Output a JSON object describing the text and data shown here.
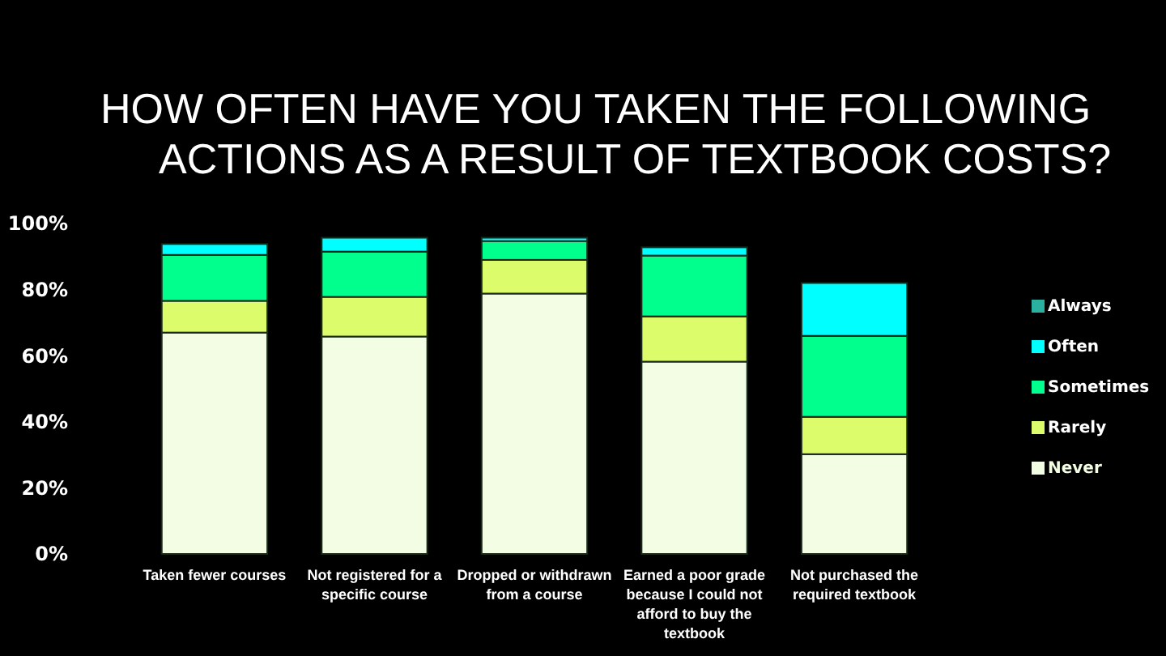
{
  "chart_data": {
    "type": "bar",
    "title": "HOW OFTEN HAVE YOU TAKEN THE FOLLOWING\nACTIONS AS A RESULT OF TEXTBOOK COSTS?",
    "categories": [
      "Taken fewer courses",
      "Not registered for a specific course",
      "Dropped or withdrawn from a course",
      "Earned a poor grade because I could not afford to buy the textbook",
      "Not purchased the required textbook"
    ],
    "stacked": true,
    "series": [
      {
        "name": "Never",
        "color": "#f2fde4",
        "values": [
          67,
          65.8,
          78.8,
          58.2,
          30.2
        ]
      },
      {
        "name": "Rarely",
        "color": "#dcfc6c",
        "values": [
          9.6,
          12,
          10.2,
          13.7,
          11.3
        ]
      },
      {
        "name": "Sometimes",
        "color": "#00ff8c",
        "values": [
          13.9,
          13.7,
          5.7,
          18.4,
          24.5
        ]
      },
      {
        "name": "Often",
        "color": "#00ffff",
        "values": [
          3.3,
          4.2,
          1,
          2.5,
          16
        ]
      },
      {
        "name": "Always",
        "color": "#2ab0a0",
        "values": [
          0,
          0,
          0,
          0,
          0
        ]
      }
    ],
    "ylim": [
      0,
      100
    ],
    "yticks": [
      {
        "value": 0,
        "label": "0%"
      },
      {
        "value": 20,
        "label": "20%"
      },
      {
        "value": 40,
        "label": "40%"
      },
      {
        "value": 60,
        "label": "60%"
      },
      {
        "value": 80,
        "label": "80%"
      },
      {
        "value": 100,
        "label": "100%"
      }
    ],
    "grid": false,
    "legend": "right"
  }
}
